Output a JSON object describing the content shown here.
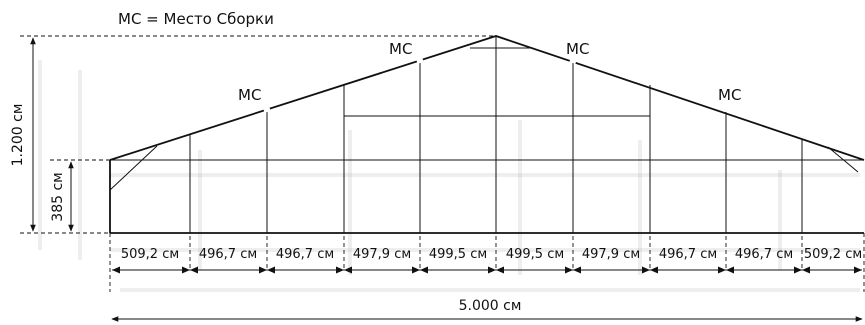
{
  "legend": "MC = Место Сборки",
  "assembly_label": "MC",
  "height_total": "1.200 см",
  "height_wall": "385 см",
  "total_width": "5.000 см",
  "segments": [
    "509,2 см",
    "496,7 см",
    "496,7 см",
    "497,9 см",
    "499,5 см",
    "499,5 см",
    "497,9 см",
    "496,7 см",
    "496,7 см",
    "509,2 см"
  ]
}
